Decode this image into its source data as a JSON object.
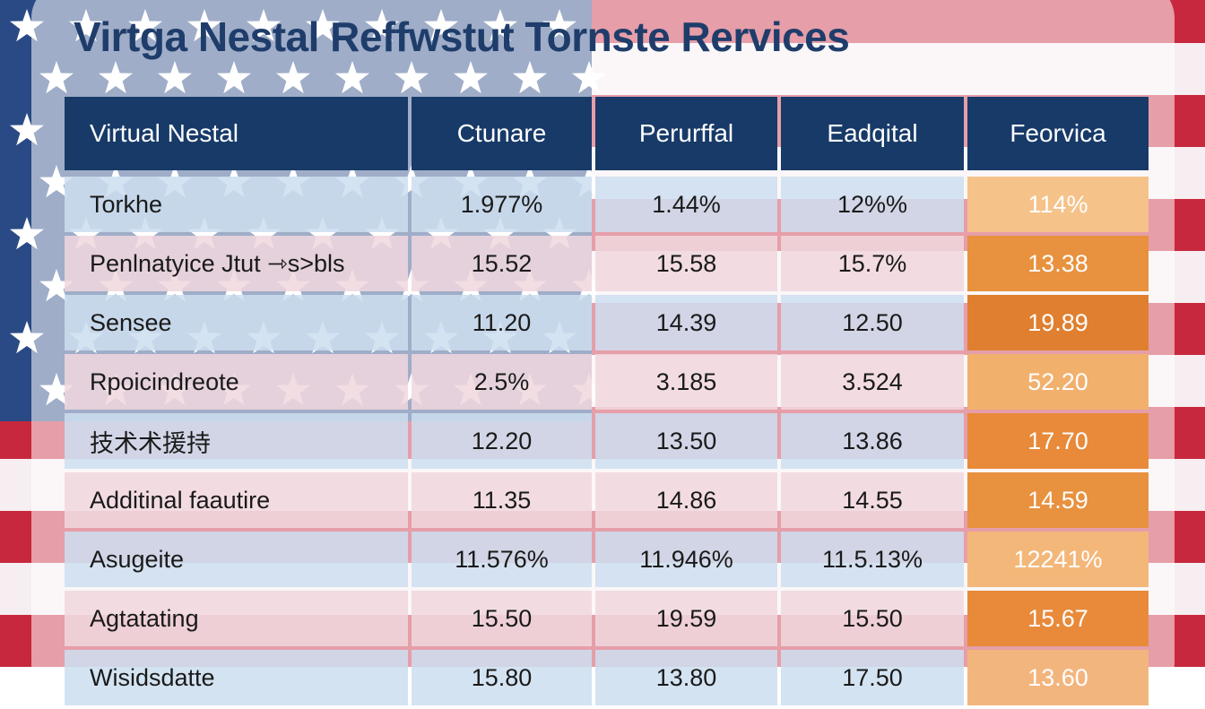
{
  "header": {
    "title": "Virtga Nestal Reffwstut Tornste Rervices"
  },
  "table": {
    "columns": [
      "Virtual Nestal",
      "Ctunare",
      "Perurffal",
      "Eadqital",
      "Feorvica"
    ],
    "rows": [
      [
        "Torkhe",
        "1.977%",
        "1.44%",
        "12%%",
        "114%"
      ],
      [
        "Penlnatyice Jtut ⇾s>bls",
        "15.52",
        "15.58",
        "15.7%",
        "13.38"
      ],
      [
        "Sensee",
        "11.20",
        "14.39",
        "12.50",
        "19.89"
      ],
      [
        "Rpoicindreote",
        "2.5%",
        "3.185",
        "3.524",
        "52.20"
      ],
      [
        "技术术援持",
        "12.20",
        "13.50",
        "13.86",
        "17.70"
      ],
      [
        "Additinal faautire",
        "11.35",
        "14.86",
        "14.55",
        "14.59"
      ],
      [
        "Asugeite",
        "11.576%",
        "11.946%",
        "11.5.13%",
        "12241%"
      ],
      [
        "Agtatating",
        "15.50",
        "19.59",
        "15.50",
        "15.67"
      ],
      [
        "Wisidsdatte",
        "15.80",
        "13.80",
        "17.50",
        "13.60"
      ]
    ]
  }
}
